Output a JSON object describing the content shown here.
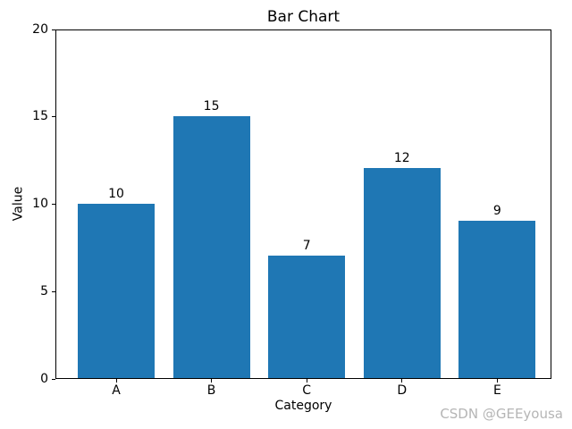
{
  "figure": {
    "background": "#ffffff",
    "watermark": "CSDN @GEEyousa",
    "watermark_color": "#b5b5b5"
  },
  "chart_data": {
    "type": "bar",
    "title": "Bar Chart",
    "xlabel": "Category",
    "ylabel": "Value",
    "categories": [
      "A",
      "B",
      "C",
      "D",
      "E"
    ],
    "values": [
      10,
      15,
      7,
      12,
      9
    ],
    "bar_labels": [
      "10",
      "15",
      "7",
      "12",
      "9"
    ],
    "ylim": [
      0,
      20
    ],
    "yticks": [
      0,
      5,
      10,
      15,
      20
    ],
    "bar_color": "#1f77b4",
    "text_color": "#000000",
    "grid": false,
    "legend": "none"
  }
}
